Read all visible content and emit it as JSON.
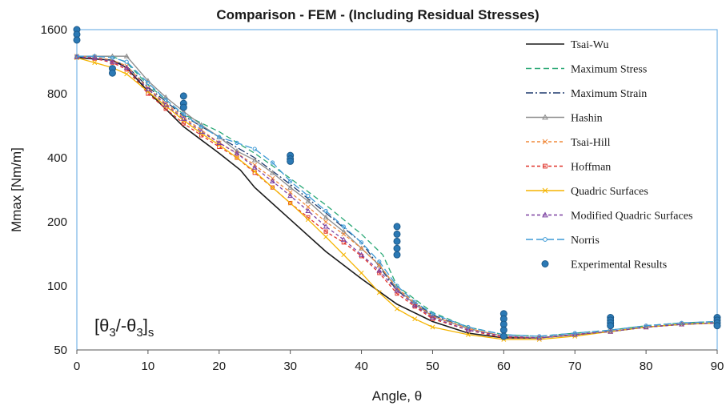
{
  "chart_data": {
    "type": "line",
    "title": "Comparison - FEM - (Including Residual Stresses)",
    "xlabel": "Angle, θ",
    "ylabel": "Mmax [Nm/m]",
    "xlim": [
      0,
      90
    ],
    "ylim": [
      50,
      1600
    ],
    "yscale": "log2",
    "xticks": [
      "0",
      "10",
      "20",
      "30",
      "40",
      "50",
      "60",
      "70",
      "80",
      "90"
    ],
    "yticks": [
      "50",
      "100",
      "200",
      "400",
      "800",
      "1600"
    ],
    "grid": false,
    "legend_position": "top-right",
    "annotation": {
      "base": "[θ",
      "sub1": "3",
      "mid": "/-θ",
      "sub2": "3",
      "close": "]",
      "sub3": "s"
    },
    "series": [
      {
        "name": "Tsai-Wu",
        "color": "#1a1a1a",
        "dash": "",
        "marker": "none",
        "x": [
          0,
          5,
          7,
          10,
          15,
          20,
          23,
          25,
          30,
          35,
          40,
          45,
          50,
          55,
          60,
          65,
          70,
          75,
          80,
          85,
          90
        ],
        "y": [
          1180,
          1150,
          1060,
          820,
          560,
          420,
          350,
          290,
          205,
          145,
          108,
          82,
          68,
          60,
          57,
          57,
          59,
          61,
          64,
          66,
          67
        ]
      },
      {
        "name": "Maximum Stress",
        "color": "#2aa876",
        "dash": "7 4",
        "marker": "none",
        "x": [
          0,
          5,
          7,
          10,
          15,
          20,
          25,
          30,
          35,
          40,
          43,
          45,
          50,
          55,
          60,
          65,
          70,
          75,
          80,
          85,
          90
        ],
        "y": [
          1200,
          1200,
          1120,
          880,
          640,
          530,
          420,
          320,
          240,
          175,
          140,
          100,
          75,
          64,
          59,
          58,
          60,
          62,
          65,
          67,
          68
        ]
      },
      {
        "name": "Maximum Strain",
        "color": "#1f3a6e",
        "dash": "9 3 2 3",
        "marker": "none",
        "x": [
          0,
          5,
          7,
          10,
          15,
          20,
          25,
          30,
          35,
          40,
          45,
          50,
          55,
          60,
          65,
          70,
          75,
          80,
          85,
          90
        ],
        "y": [
          1190,
          1150,
          1080,
          860,
          630,
          500,
          400,
          300,
          220,
          160,
          95,
          73,
          63,
          58,
          57,
          59,
          61,
          64,
          66,
          67
        ]
      },
      {
        "name": "Hashin",
        "color": "#8c8c8c",
        "dash": "",
        "marker": "triangle",
        "x": [
          0,
          2.5,
          5,
          7,
          10,
          12.5,
          15,
          17.5,
          20,
          22.5,
          25,
          27.5,
          30,
          32.5,
          35,
          37.5,
          40,
          42.5,
          45,
          47.5,
          50,
          55,
          60,
          65,
          70,
          75,
          80,
          85,
          90
        ],
        "y": [
          1200,
          1200,
          1200,
          1200,
          920,
          770,
          660,
          570,
          500,
          430,
          390,
          340,
          290,
          250,
          210,
          180,
          150,
          125,
          97,
          82,
          72,
          63,
          58,
          57,
          59,
          61,
          64,
          66,
          67
        ]
      },
      {
        "name": "Tsai-Hill",
        "color": "#f08a3c",
        "dash": "4 3",
        "marker": "x",
        "x": [
          0,
          2.5,
          5,
          7,
          10,
          12.5,
          15,
          17.5,
          20,
          22.5,
          25,
          27.5,
          30,
          32.5,
          35,
          37.5,
          40,
          42.5,
          45,
          47.5,
          50,
          55,
          60,
          65,
          70,
          75,
          80,
          85,
          90
        ],
        "y": [
          1200,
          1190,
          1150,
          1080,
          850,
          720,
          620,
          540,
          470,
          420,
          370,
          320,
          275,
          235,
          200,
          175,
          150,
          125,
          98,
          83,
          72,
          63,
          58,
          57,
          59,
          61,
          64,
          66,
          67
        ]
      },
      {
        "name": "Hoffman",
        "color": "#e0352b",
        "dash": "4 3",
        "marker": "square",
        "x": [
          0,
          2.5,
          5,
          7,
          10,
          12.5,
          15,
          17.5,
          20,
          22.5,
          25,
          27.5,
          30,
          32.5,
          35,
          37.5,
          40,
          42.5,
          45,
          47.5,
          50,
          55,
          60,
          65,
          70,
          75,
          80,
          85,
          90
        ],
        "y": [
          1190,
          1170,
          1120,
          1040,
          800,
          680,
          580,
          510,
          450,
          400,
          340,
          290,
          245,
          210,
          180,
          160,
          138,
          115,
          92,
          80,
          70,
          62,
          57,
          57,
          59,
          61,
          64,
          66,
          67
        ]
      },
      {
        "name": "Quadric Surfaces",
        "color": "#f5b400",
        "dash": "",
        "marker": "x",
        "x": [
          0,
          2.5,
          5,
          7,
          10,
          12.5,
          15,
          17.5,
          20,
          22.5,
          25,
          27.5,
          30,
          32.5,
          35,
          37.5,
          40,
          42.5,
          45,
          47.5,
          50,
          55,
          60,
          65,
          70,
          75,
          80,
          85,
          90
        ],
        "y": [
          1180,
          1120,
          1060,
          990,
          820,
          700,
          600,
          520,
          460,
          400,
          345,
          290,
          245,
          205,
          170,
          140,
          115,
          93,
          78,
          70,
          64,
          59,
          56,
          56,
          58,
          61,
          64,
          66,
          67
        ]
      },
      {
        "name": "Modified Quadric Surfaces",
        "color": "#7a3fa0",
        "dash": "4 3",
        "marker": "triangle",
        "x": [
          0,
          2.5,
          5,
          7,
          10,
          12.5,
          15,
          17.5,
          20,
          22.5,
          25,
          27.5,
          30,
          32.5,
          35,
          37.5,
          40,
          42.5,
          45,
          47.5,
          50,
          55,
          60,
          65,
          70,
          75,
          80,
          85,
          90
        ],
        "y": [
          1190,
          1180,
          1130,
          1060,
          840,
          710,
          610,
          530,
          470,
          420,
          360,
          310,
          265,
          225,
          190,
          165,
          140,
          118,
          95,
          81,
          71,
          62,
          58,
          57,
          59,
          61,
          64,
          66,
          67
        ]
      },
      {
        "name": "Norris",
        "color": "#3d9ad6",
        "dash": "9 4",
        "marker": "circle",
        "x": [
          0,
          2.5,
          5,
          7,
          10,
          12.5,
          15,
          17.5,
          20,
          22.5,
          25,
          27.5,
          30,
          32.5,
          35,
          37.5,
          40,
          42.5,
          45,
          47.5,
          50,
          55,
          60,
          65,
          70,
          75,
          80,
          85,
          90
        ],
        "y": [
          1200,
          1200,
          1180,
          1130,
          900,
          750,
          640,
          560,
          500,
          470,
          440,
          380,
          310,
          265,
          225,
          190,
          160,
          130,
          100,
          84,
          74,
          64,
          59,
          58,
          60,
          62,
          65,
          67,
          68
        ]
      },
      {
        "name": "Experimental Results",
        "color": "#2b79b5",
        "dash": "",
        "marker": "dot",
        "scatter": true,
        "x": [
          0,
          0,
          0,
          5,
          5,
          15,
          15,
          15,
          30,
          30,
          30,
          45,
          45,
          45,
          45,
          45,
          60,
          60,
          60,
          60,
          60,
          75,
          75,
          75,
          75,
          90,
          90,
          90,
          90
        ],
        "y": [
          1600,
          1520,
          1430,
          1050,
          1000,
          780,
          720,
          690,
          410,
          395,
          385,
          190,
          175,
          162,
          150,
          140,
          74,
          70,
          66,
          62,
          58,
          71,
          69,
          67,
          65,
          71,
          69,
          67,
          65
        ]
      }
    ]
  }
}
